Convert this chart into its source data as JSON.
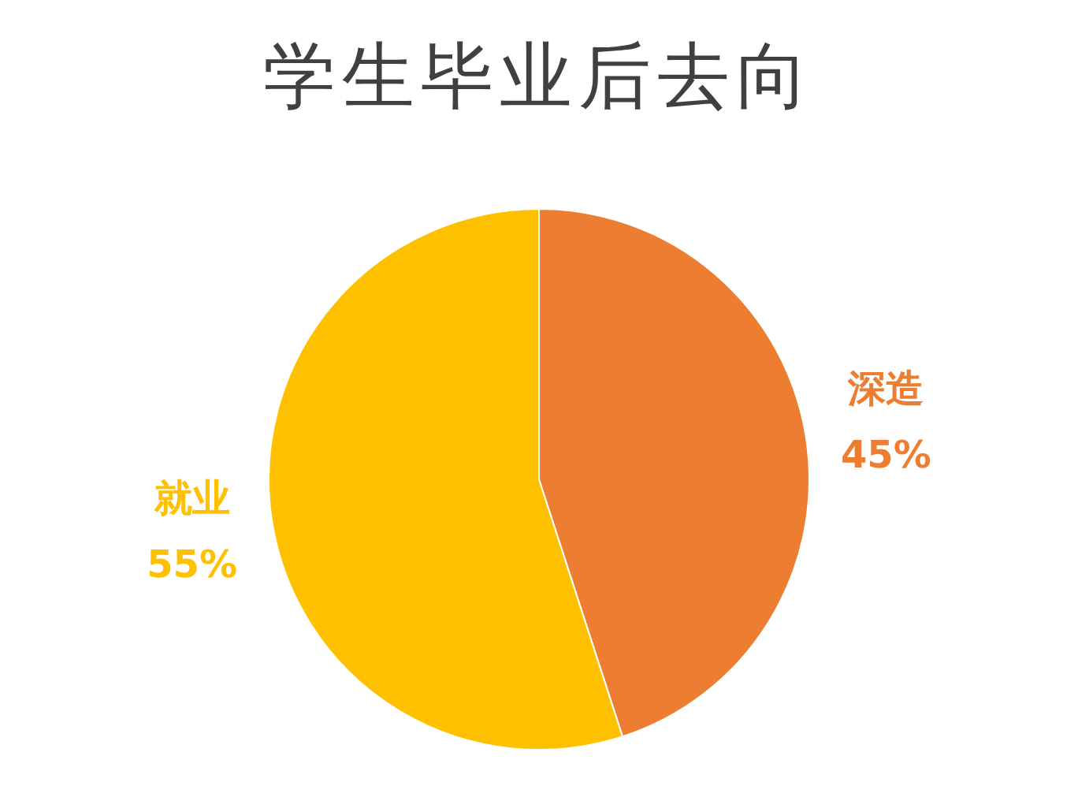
{
  "chart_data": {
    "type": "pie",
    "title": "学生毕业后去向",
    "categories": [
      "深造",
      "就业"
    ],
    "values": [
      45,
      55
    ],
    "value_labels": [
      "45%",
      "55%"
    ],
    "colors": [
      "#ed7d31",
      "#ffc000"
    ],
    "legend": false
  }
}
